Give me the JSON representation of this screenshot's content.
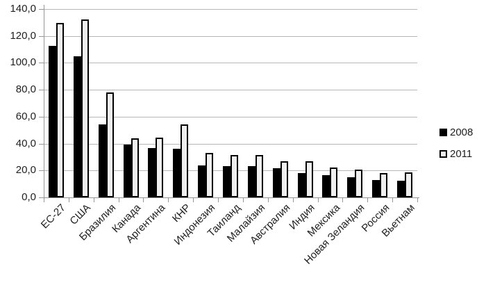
{
  "chart_data": {
    "type": "bar",
    "title": "",
    "xlabel": "",
    "ylabel": "",
    "grid": true,
    "legend_position": "right-middle",
    "ylim": [
      0,
      140
    ],
    "ytick_step": 20,
    "yticks": [
      {
        "value": 140,
        "label": "140,0"
      },
      {
        "value": 120,
        "label": "120,0"
      },
      {
        "value": 100,
        "label": "100,0"
      },
      {
        "value": 80,
        "label": "80,0"
      },
      {
        "value": 60,
        "label": "60,0"
      },
      {
        "value": 40,
        "label": "40,0"
      },
      {
        "value": 20,
        "label": "20,0"
      },
      {
        "value": 0,
        "label": "0,0"
      }
    ],
    "categories": [
      "ЕС-27",
      "США",
      "Бразилия",
      "Канада",
      "Аргентина",
      "КНР",
      "Индонезия",
      "Таиланд",
      "Малайзия",
      "Австралия",
      "Индия",
      "Мексика",
      "Новая Зеландия",
      "Россия",
      "Вьетнам"
    ],
    "series": [
      {
        "name": "2008",
        "fill": "#000000",
        "border": "#000000",
        "values": [
          112.5,
          105,
          54.5,
          39.5,
          36.5,
          36,
          24,
          23.5,
          23,
          21.5,
          18,
          16.5,
          15,
          13,
          12.5
        ]
      },
      {
        "name": "2011",
        "fill": "#efefef",
        "border": "#000000",
        "values": [
          129.5,
          132,
          78,
          44,
          44.5,
          54.5,
          33,
          31.5,
          31.5,
          27,
          27,
          22,
          20.5,
          18,
          18.5
        ]
      }
    ]
  },
  "colors": {
    "background": "#ffffff",
    "gridline": "#b6b6b6",
    "axis": "#969696",
    "text": "#1f1f1f"
  }
}
